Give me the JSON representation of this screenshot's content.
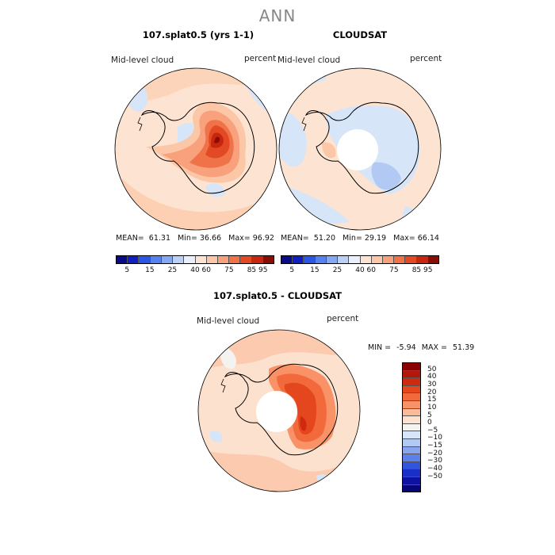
{
  "page_title": "ANN",
  "panels": {
    "left": {
      "title": "107.splat0.5 (yrs 1-1)",
      "field_label": "Mid-level cloud",
      "units": "percent",
      "stats": {
        "mean_label": "MEAN=",
        "mean": "61.31",
        "min_label": "Min=",
        "min": "36.66",
        "max_label": "Max=",
        "max": "96.92"
      }
    },
    "right": {
      "title": "CLOUDSAT",
      "field_label": "Mid-level cloud",
      "units": "percent",
      "stats": {
        "mean_label": "MEAN=",
        "mean": "51.20",
        "min_label": "Min=",
        "min": "29.19",
        "max_label": "Max=",
        "max": "66.14"
      }
    },
    "diff": {
      "title": "107.splat0.5 - CLOUDSAT",
      "field_label": "Mid-level cloud",
      "units": "percent",
      "min_label": "MIN =",
      "min": "-5.94",
      "max_label": "MAX =",
      "max": "51.39"
    }
  },
  "colorbars": {
    "absolute": {
      "colors": [
        "#0a0a8a",
        "#0f1fc0",
        "#2e56e6",
        "#5782ee",
        "#85a8f2",
        "#bcd0f5",
        "#eaf0fb",
        "#fde4d2",
        "#fcc7a6",
        "#f9a07c",
        "#f07248",
        "#e24a25",
        "#c8260e",
        "#8b0c05"
      ],
      "ticks": [
        "5",
        "15",
        "25",
        "40",
        "60",
        "75",
        "85",
        "95"
      ]
    },
    "difference": {
      "colors": [
        "#8b0000",
        "#b3160b",
        "#cf2a10",
        "#e4461e",
        "#f26a3c",
        "#f99267",
        "#fbbb98",
        "#fde1cf",
        "#f5f3f0",
        "#d7e5f8",
        "#b2c9f3",
        "#88a5ee",
        "#5d80ea",
        "#3255df",
        "#1a2fc8",
        "#0d12a0",
        "#06067a"
      ],
      "ticks": [
        "50",
        "40",
        "30",
        "20",
        "15",
        "10",
        "5",
        "0",
        "−5",
        "−10",
        "−15",
        "−20",
        "−30",
        "−40",
        "−50"
      ]
    }
  }
}
